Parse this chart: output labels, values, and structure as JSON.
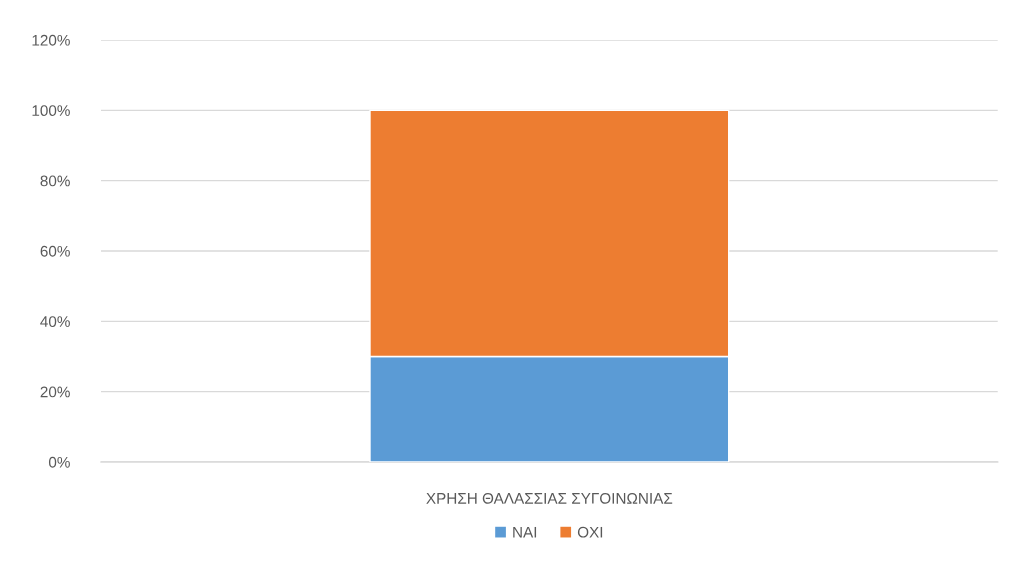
{
  "chart_data": {
    "type": "bar",
    "stacked": true,
    "categories": [
      "ΧΡΗΣΗ ΘΑΛΑΣΣΙΑΣ ΣΥΓΟΙΝΩΝΙΑΣ"
    ],
    "series": [
      {
        "name": "ΝΑΙ",
        "color": "#5b9bd5",
        "values": [
          30
        ]
      },
      {
        "name": "ΟΧΙ",
        "color": "#ed7d31",
        "values": [
          70
        ]
      }
    ],
    "ylim": [
      0,
      120
    ],
    "yticks": [
      {
        "value": 0,
        "label": "0%"
      },
      {
        "value": 20,
        "label": "20%"
      },
      {
        "value": 40,
        "label": "40%"
      },
      {
        "value": 60,
        "label": "60%"
      },
      {
        "value": 80,
        "label": "80%"
      },
      {
        "value": 100,
        "label": "100%"
      },
      {
        "value": 120,
        "label": "120%"
      }
    ],
    "grid": "y",
    "legend": "bottom"
  }
}
